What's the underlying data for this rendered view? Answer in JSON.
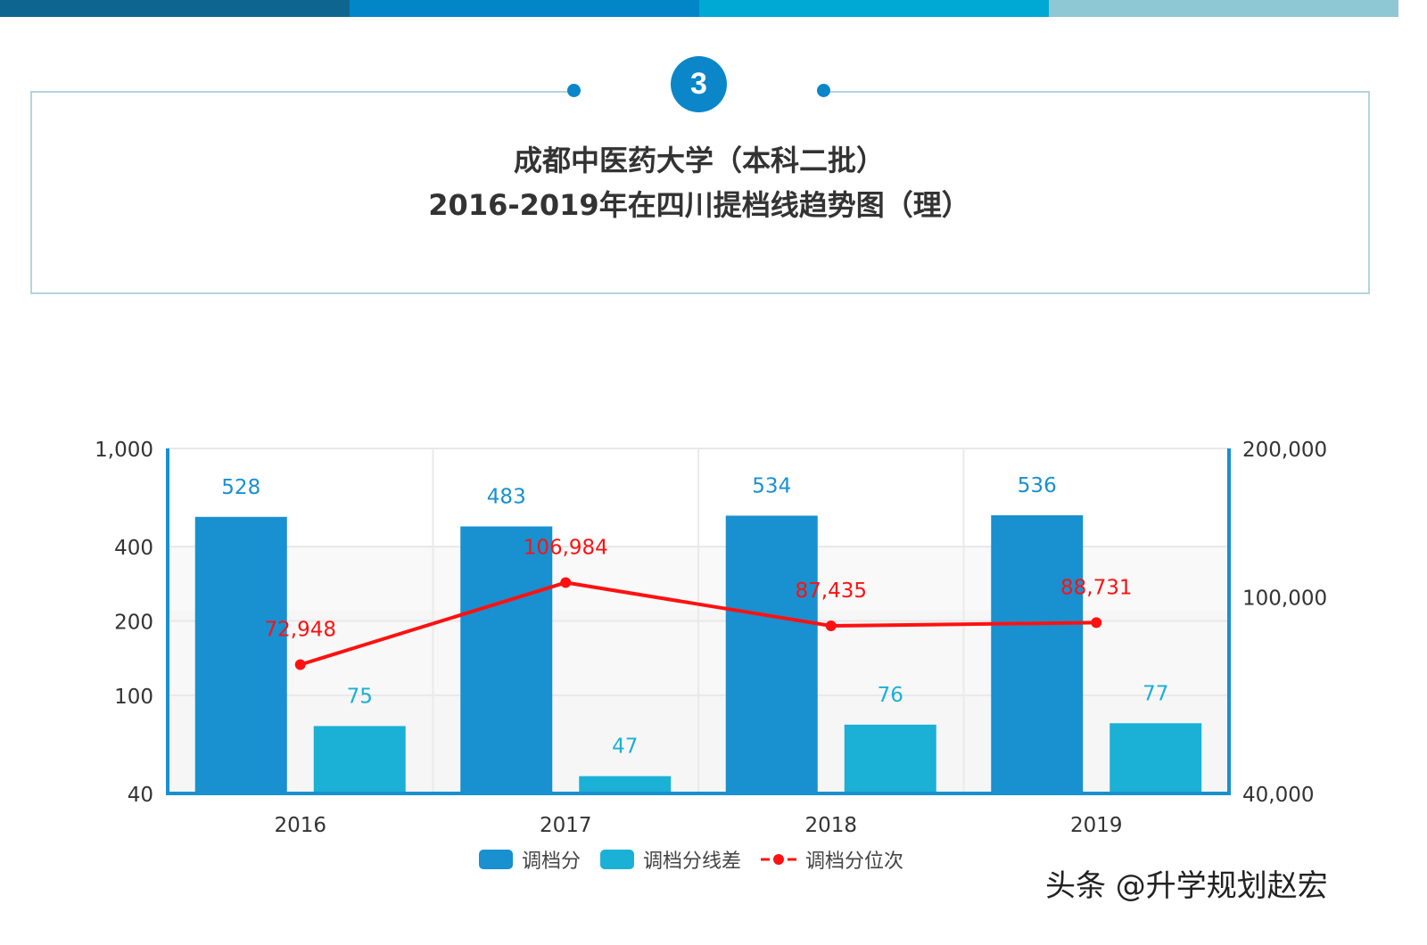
{
  "header": {
    "badge": "3",
    "title_line1": "成都中医药大学（本科二批）",
    "title_line2": "2016-2019年在四川提档线趋势图（理）",
    "bar_colors": [
      "#0e6690",
      "#0286c8",
      "#00a9d4",
      "#8fc8d5"
    ]
  },
  "chart_data": {
    "type": "bar+line",
    "categories": [
      "2016",
      "2017",
      "2018",
      "2019"
    ],
    "y_left": {
      "scale": "log",
      "range": [
        40,
        1000
      ],
      "ticks": [
        "1,000",
        "400",
        "200",
        "100",
        "40"
      ],
      "tick_values": [
        1000,
        400,
        200,
        100,
        40
      ]
    },
    "y_right": {
      "scale": "log",
      "range": [
        40000,
        200000
      ],
      "ticks": [
        "200,000",
        "100,000",
        "40,000"
      ],
      "tick_values": [
        200000,
        100000,
        40000
      ]
    },
    "series": [
      {
        "name": "调档分",
        "type": "bar",
        "axis": "left",
        "color": "#1990cf",
        "values": [
          528,
          483,
          534,
          536
        ],
        "labels": [
          "528",
          "483",
          "534",
          "536"
        ]
      },
      {
        "name": "调档分线差",
        "type": "bar",
        "axis": "left",
        "color": "#1bb0d6",
        "values": [
          75,
          47,
          76,
          77
        ],
        "labels": [
          "75",
          "47",
          "76",
          "77"
        ]
      },
      {
        "name": "调档分位次",
        "type": "line",
        "axis": "right",
        "color": "#ff1111",
        "values": [
          72948,
          106984,
          87435,
          88731
        ],
        "labels": [
          "72,948",
          "106,984",
          "87,435",
          "88,731"
        ]
      }
    ],
    "grid": true,
    "legend": "bottom"
  },
  "watermark": "头条 @升学规划赵宏"
}
